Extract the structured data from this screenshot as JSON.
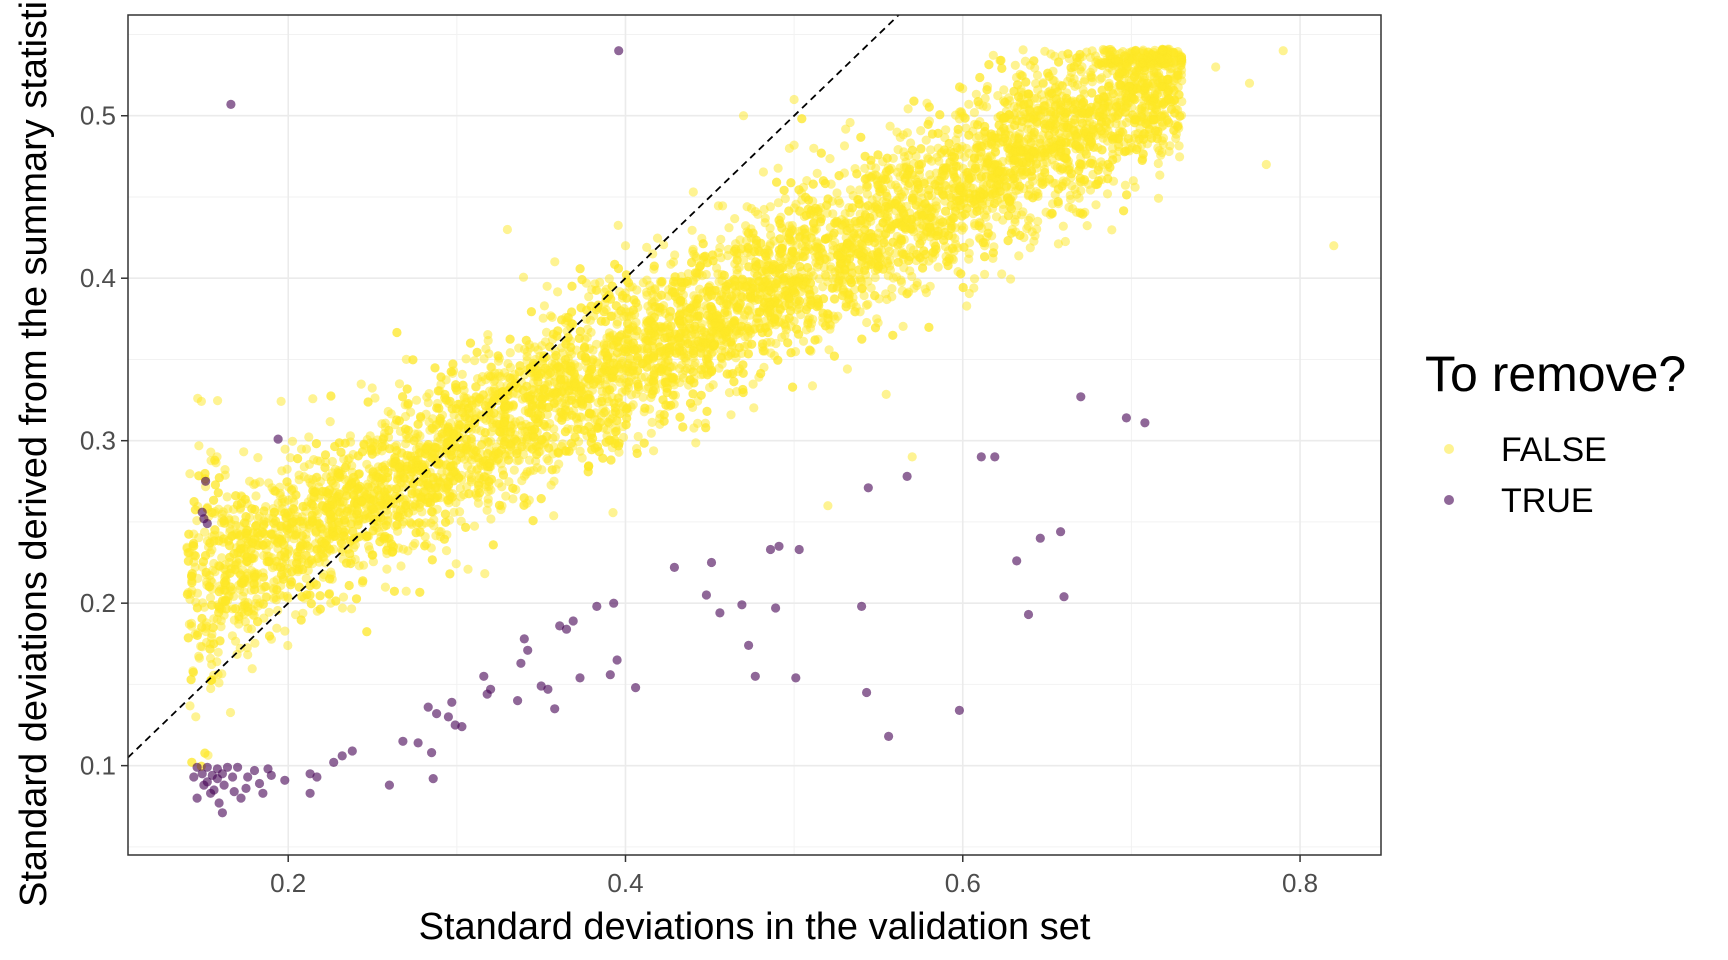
{
  "chart_data": {
    "type": "scatter",
    "title": "",
    "xlabel": "Standard deviations in the validation set",
    "ylabel": "Standard deviations derived from the summary statistics",
    "xlim": [
      0.105,
      0.848
    ],
    "ylim": [
      0.045,
      0.562
    ],
    "x_ticks": [
      0.2,
      0.4,
      0.6,
      0.8
    ],
    "y_ticks": [
      0.1,
      0.2,
      0.3,
      0.4,
      0.5
    ],
    "x_tick_labels": [
      "0.2",
      "0.4",
      "0.6",
      "0.8"
    ],
    "y_tick_labels": [
      "0.1",
      "0.2",
      "0.3",
      "0.4",
      "0.5"
    ],
    "grid": true,
    "reference_line": {
      "type": "identity",
      "style": "dashed",
      "slope": 1,
      "intercept": 0
    },
    "legend": {
      "title": "To remove?",
      "placement": "right"
    },
    "series": [
      {
        "name": "FALSE",
        "color": "#FDE725",
        "opacity": 0.5,
        "description": "dense cloud, roughly 'y = 0.13 + 0.55x'",
        "dense_band": {
          "x_min": 0.14,
          "x_max": 0.73,
          "y_at_x_min": [
            0.1,
            0.26
          ],
          "y_at_x_max": [
            0.45,
            0.54
          ]
        },
        "outliers": [
          [
            0.79,
            0.54
          ],
          [
            0.75,
            0.53
          ],
          [
            0.77,
            0.52
          ],
          [
            0.78,
            0.47
          ],
          [
            0.82,
            0.42
          ],
          [
            0.47,
            0.5
          ],
          [
            0.5,
            0.51
          ],
          [
            0.33,
            0.43
          ],
          [
            0.4,
            0.42
          ],
          [
            0.27,
            0.35
          ],
          [
            0.52,
            0.26
          ],
          [
            0.57,
            0.29
          ]
        ]
      },
      {
        "name": "TRUE",
        "color": "#440154",
        "opacity": 0.6,
        "points": [
          [
            0.396,
            0.54
          ],
          [
            0.166,
            0.507
          ],
          [
            0.194,
            0.301
          ],
          [
            0.151,
            0.275
          ],
          [
            0.149,
            0.256
          ],
          [
            0.15,
            0.252
          ],
          [
            0.152,
            0.249
          ],
          [
            0.67,
            0.327
          ],
          [
            0.697,
            0.314
          ],
          [
            0.708,
            0.311
          ],
          [
            0.611,
            0.29
          ],
          [
            0.619,
            0.29
          ],
          [
            0.544,
            0.271
          ],
          [
            0.567,
            0.278
          ],
          [
            0.658,
            0.244
          ],
          [
            0.646,
            0.24
          ],
          [
            0.632,
            0.226
          ],
          [
            0.66,
            0.204
          ],
          [
            0.639,
            0.193
          ],
          [
            0.486,
            0.233
          ],
          [
            0.491,
            0.235
          ],
          [
            0.503,
            0.233
          ],
          [
            0.451,
            0.225
          ],
          [
            0.429,
            0.222
          ],
          [
            0.448,
            0.205
          ],
          [
            0.469,
            0.199
          ],
          [
            0.489,
            0.197
          ],
          [
            0.54,
            0.198
          ],
          [
            0.456,
            0.194
          ],
          [
            0.473,
            0.174
          ],
          [
            0.477,
            0.155
          ],
          [
            0.501,
            0.154
          ],
          [
            0.543,
            0.145
          ],
          [
            0.556,
            0.118
          ],
          [
            0.598,
            0.134
          ],
          [
            0.393,
            0.2
          ],
          [
            0.383,
            0.198
          ],
          [
            0.369,
            0.189
          ],
          [
            0.361,
            0.186
          ],
          [
            0.365,
            0.184
          ],
          [
            0.34,
            0.178
          ],
          [
            0.342,
            0.171
          ],
          [
            0.338,
            0.163
          ],
          [
            0.395,
            0.165
          ],
          [
            0.391,
            0.156
          ],
          [
            0.373,
            0.154
          ],
          [
            0.406,
            0.148
          ],
          [
            0.35,
            0.149
          ],
          [
            0.354,
            0.147
          ],
          [
            0.358,
            0.135
          ],
          [
            0.316,
            0.155
          ],
          [
            0.32,
            0.147
          ],
          [
            0.318,
            0.144
          ],
          [
            0.336,
            0.14
          ],
          [
            0.297,
            0.139
          ],
          [
            0.288,
            0.132
          ],
          [
            0.283,
            0.136
          ],
          [
            0.295,
            0.13
          ],
          [
            0.299,
            0.125
          ],
          [
            0.303,
            0.124
          ],
          [
            0.277,
            0.114
          ],
          [
            0.285,
            0.108
          ],
          [
            0.286,
            0.092
          ],
          [
            0.268,
            0.115
          ],
          [
            0.26,
            0.088
          ],
          [
            0.238,
            0.109
          ],
          [
            0.232,
            0.106
          ],
          [
            0.227,
            0.102
          ],
          [
            0.213,
            0.095
          ],
          [
            0.217,
            0.093
          ],
          [
            0.213,
            0.083
          ],
          [
            0.198,
            0.091
          ],
          [
            0.188,
            0.098
          ],
          [
            0.19,
            0.094
          ],
          [
            0.183,
            0.089
          ],
          [
            0.18,
            0.097
          ],
          [
            0.176,
            0.093
          ],
          [
            0.17,
            0.099
          ],
          [
            0.167,
            0.093
          ],
          [
            0.164,
            0.099
          ],
          [
            0.161,
            0.095
          ],
          [
            0.158,
            0.098
          ],
          [
            0.155,
            0.094
          ],
          [
            0.152,
            0.099
          ],
          [
            0.149,
            0.095
          ],
          [
            0.146,
            0.099
          ],
          [
            0.144,
            0.093
          ],
          [
            0.15,
            0.088
          ],
          [
            0.156,
            0.085
          ],
          [
            0.162,
            0.088
          ],
          [
            0.146,
            0.08
          ],
          [
            0.154,
            0.083
          ],
          [
            0.168,
            0.084
          ],
          [
            0.159,
            0.077
          ],
          [
            0.161,
            0.071
          ],
          [
            0.175,
            0.086
          ],
          [
            0.185,
            0.083
          ],
          [
            0.172,
            0.08
          ],
          [
            0.152,
            0.09
          ],
          [
            0.158,
            0.092
          ]
        ]
      }
    ]
  }
}
